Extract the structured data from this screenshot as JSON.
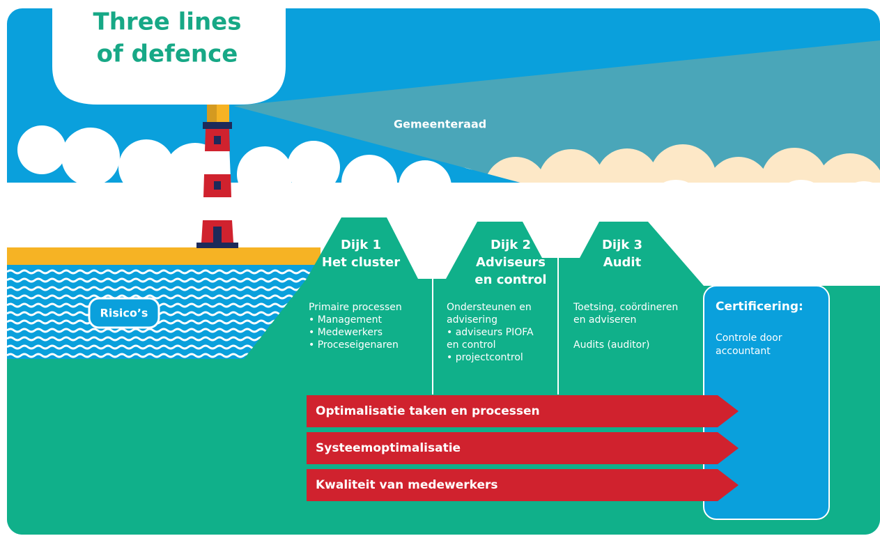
{
  "title": {
    "lines": [
      "Three lines",
      "of defence"
    ]
  },
  "beam_label": "Gemeenteraad",
  "risks_label": "Risico’s",
  "dikes": [
    {
      "title_lines": [
        "Dijk 1",
        "Het cluster"
      ],
      "paragraphs": [
        [
          "Primaire processen",
          "• Management",
          "• Medewerkers",
          "• Proceseigenaren"
        ]
      ]
    },
    {
      "title_lines": [
        "Dijk 2",
        "Adviseurs",
        "en control"
      ],
      "paragraphs": [
        [
          "Ondersteunen en",
          "advisering",
          "• adviseurs PIOFA",
          "   en control",
          "• projectcontrol"
        ]
      ]
    },
    {
      "title_lines": [
        "Dijk 3",
        "Audit"
      ],
      "paragraphs": [
        [
          "Toetsing, coördineren",
          "en adviseren"
        ],
        [
          "Audits (auditor)"
        ]
      ]
    }
  ],
  "certification": {
    "title": "Certificering:",
    "lines": [
      "Controle door",
      "accountant"
    ]
  },
  "arrows": [
    "Optimalisatie taken en processen",
    "Systeemoptimalisatie",
    "Kwaliteit van medewerkers"
  ]
}
